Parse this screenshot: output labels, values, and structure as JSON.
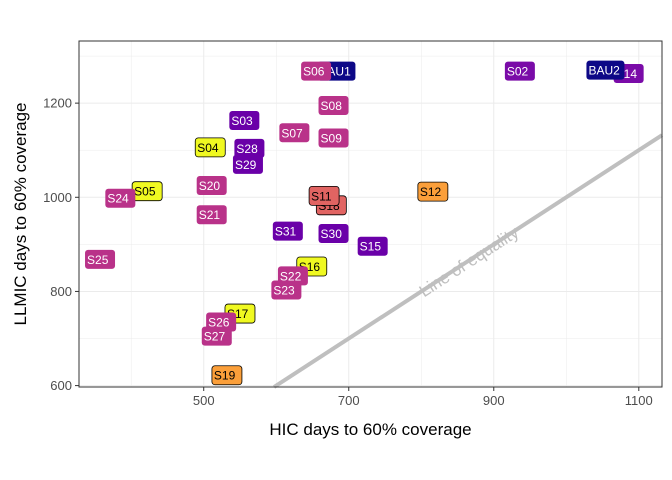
{
  "chart_data": {
    "type": "scatter",
    "xlabel": "HIC days to 60% coverage",
    "ylabel": "LLMIC days to 60% coverage",
    "xlim": [
      328,
      1132
    ],
    "ylim": [
      597,
      1332
    ],
    "x_ticks": [
      500,
      700,
      900,
      1100
    ],
    "y_ticks": [
      600,
      800,
      1000,
      1200
    ],
    "grid": true,
    "reference_line": {
      "label": "Line of equality",
      "slope": 1,
      "intercept": 0,
      "color": "#bfbfbf"
    },
    "points": [
      {
        "label": "BAU1",
        "x": 683,
        "y": 1268,
        "fill": "#0d0887",
        "text": "#ffffff"
      },
      {
        "label": "S06",
        "x": 655,
        "y": 1268,
        "fill": "#b93289",
        "text": "#ffffff"
      },
      {
        "label": "S02",
        "x": 936,
        "y": 1268,
        "fill": "#7a0ba8",
        "text": "#ffffff"
      },
      {
        "label": "S14",
        "x": 1086,
        "y": 1263,
        "fill": "#7a0ba8",
        "text": "#ffffff"
      },
      {
        "label": "BAU2",
        "x": 1054,
        "y": 1270,
        "fill": "#0d0887",
        "text": "#ffffff"
      },
      {
        "label": "S08",
        "x": 679,
        "y": 1195,
        "fill": "#b93289",
        "text": "#ffffff"
      },
      {
        "label": "S03",
        "x": 556,
        "y": 1163,
        "fill": "#6a00a8",
        "text": "#ffffff"
      },
      {
        "label": "S07",
        "x": 625,
        "y": 1137,
        "fill": "#b93289",
        "text": "#ffffff"
      },
      {
        "label": "S09",
        "x": 679,
        "y": 1126,
        "fill": "#b93289",
        "text": "#ffffff"
      },
      {
        "label": "S04",
        "x": 509,
        "y": 1106,
        "fill": "#f0f921",
        "text": "#000000"
      },
      {
        "label": "S28",
        "x": 563,
        "y": 1104,
        "fill": "#6a00a8",
        "text": "#ffffff"
      },
      {
        "label": "S29",
        "x": 561,
        "y": 1070,
        "fill": "#6a00a8",
        "text": "#ffffff"
      },
      {
        "label": "S20",
        "x": 511,
        "y": 1025,
        "fill": "#b93289",
        "text": "#ffffff"
      },
      {
        "label": "S05",
        "x": 422,
        "y": 1013,
        "fill": "#f0f921",
        "text": "#000000"
      },
      {
        "label": "S24",
        "x": 385,
        "y": 998,
        "fill": "#b93289",
        "text": "#ffffff"
      },
      {
        "label": "S12",
        "x": 816,
        "y": 1012,
        "fill": "#fb9f3a",
        "text": "#000000"
      },
      {
        "label": "S18",
        "x": 676,
        "y": 983,
        "fill": "#e16462",
        "text": "#000000"
      },
      {
        "label": "S11",
        "x": 666,
        "y": 1003,
        "fill": "#e16462",
        "text": "#000000"
      },
      {
        "label": "S21",
        "x": 511,
        "y": 963,
        "fill": "#b93289",
        "text": "#ffffff"
      },
      {
        "label": "S31",
        "x": 616,
        "y": 928,
        "fill": "#6a00a8",
        "text": "#ffffff"
      },
      {
        "label": "S30",
        "x": 679,
        "y": 923,
        "fill": "#6a00a8",
        "text": "#ffffff"
      },
      {
        "label": "S15",
        "x": 733,
        "y": 896,
        "fill": "#6a00a8",
        "text": "#ffffff"
      },
      {
        "label": "S25",
        "x": 357,
        "y": 868,
        "fill": "#b93289",
        "text": "#ffffff"
      },
      {
        "label": "S16",
        "x": 649,
        "y": 853,
        "fill": "#f0f921",
        "text": "#000000"
      },
      {
        "label": "S22",
        "x": 623,
        "y": 833,
        "fill": "#b93289",
        "text": "#ffffff"
      },
      {
        "label": "S23",
        "x": 614,
        "y": 803,
        "fill": "#b93289",
        "text": "#ffffff"
      },
      {
        "label": "S17",
        "x": 550,
        "y": 753,
        "fill": "#f0f921",
        "text": "#000000"
      },
      {
        "label": "S26",
        "x": 524,
        "y": 735,
        "fill": "#b93289",
        "text": "#ffffff"
      },
      {
        "label": "S27",
        "x": 518,
        "y": 705,
        "fill": "#b93289",
        "text": "#ffffff"
      },
      {
        "label": "S19",
        "x": 532,
        "y": 622,
        "fill": "#fb9f3a",
        "text": "#000000"
      }
    ]
  }
}
